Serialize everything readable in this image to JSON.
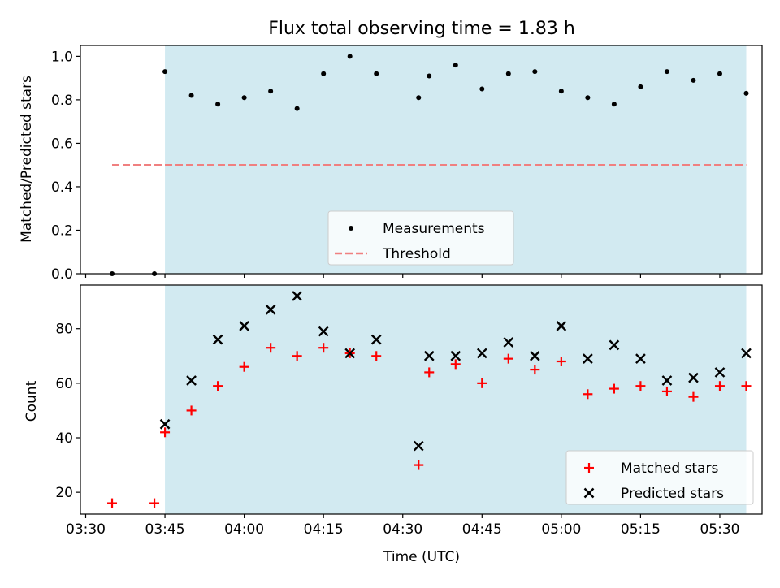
{
  "chart_data": [
    {
      "type": "scatter",
      "title": "Flux total observing time = 1.83 h",
      "xlabel": "",
      "ylabel": "Matched/Predicted stars",
      "xlim": [
        "03:29",
        "05:38"
      ],
      "ylim": [
        0,
        1.05
      ],
      "yticks": [
        "0.0",
        "0.2",
        "0.4",
        "0.6",
        "0.8",
        "1.0"
      ],
      "shaded_region": {
        "x_start": "03:45",
        "x_end": "05:35",
        "color": "#add8e6"
      },
      "series": [
        {
          "name": "Measurements",
          "marker": "dot",
          "color": "#000000",
          "points": [
            [
              "03:35",
              0.0
            ],
            [
              "03:43",
              0.0
            ],
            [
              "03:45",
              0.93
            ],
            [
              "03:50",
              0.82
            ],
            [
              "03:55",
              0.78
            ],
            [
              "04:00",
              0.81
            ],
            [
              "04:05",
              0.84
            ],
            [
              "04:10",
              0.76
            ],
            [
              "04:15",
              0.92
            ],
            [
              "04:20",
              1.0
            ],
            [
              "04:25",
              0.92
            ],
            [
              "04:33",
              0.81
            ],
            [
              "04:35",
              0.91
            ],
            [
              "04:40",
              0.96
            ],
            [
              "04:45",
              0.85
            ],
            [
              "04:50",
              0.92
            ],
            [
              "04:55",
              0.93
            ],
            [
              "05:00",
              0.84
            ],
            [
              "05:05",
              0.81
            ],
            [
              "05:10",
              0.78
            ],
            [
              "05:15",
              0.86
            ],
            [
              "05:20",
              0.93
            ],
            [
              "05:25",
              0.89
            ],
            [
              "05:30",
              0.92
            ],
            [
              "05:35",
              0.83
            ]
          ]
        },
        {
          "name": "Threshold",
          "style": "dashed",
          "color": "#f08080",
          "points": [
            [
              "03:35",
              0.5
            ],
            [
              "05:35",
              0.5
            ]
          ]
        }
      ],
      "legend_position": "lower-center"
    },
    {
      "type": "scatter",
      "title": "",
      "xlabel": "Time (UTC)",
      "ylabel": "Count",
      "xlim": [
        "03:29",
        "05:38"
      ],
      "ylim": [
        12,
        96
      ],
      "xticks": [
        "03:30",
        "03:45",
        "04:00",
        "04:15",
        "04:30",
        "04:45",
        "05:00",
        "05:15",
        "05:30"
      ],
      "yticks": [
        "20",
        "40",
        "60",
        "80"
      ],
      "shaded_region": {
        "x_start": "03:45",
        "x_end": "05:35",
        "color": "#add8e6"
      },
      "series": [
        {
          "name": "Matched stars",
          "marker": "plus",
          "color": "#ff0000",
          "points": [
            [
              "03:35",
              16
            ],
            [
              "03:43",
              16
            ],
            [
              "03:45",
              42
            ],
            [
              "03:50",
              50
            ],
            [
              "03:55",
              59
            ],
            [
              "04:00",
              66
            ],
            [
              "04:05",
              73
            ],
            [
              "04:10",
              70
            ],
            [
              "04:15",
              73
            ],
            [
              "04:20",
              71
            ],
            [
              "04:25",
              70
            ],
            [
              "04:33",
              30
            ],
            [
              "04:35",
              64
            ],
            [
              "04:40",
              67
            ],
            [
              "04:45",
              60
            ],
            [
              "04:50",
              69
            ],
            [
              "04:55",
              65
            ],
            [
              "05:00",
              68
            ],
            [
              "05:05",
              56
            ],
            [
              "05:10",
              58
            ],
            [
              "05:15",
              59
            ],
            [
              "05:20",
              57
            ],
            [
              "05:25",
              55
            ],
            [
              "05:30",
              59
            ],
            [
              "05:35",
              59
            ]
          ]
        },
        {
          "name": "Predicted stars",
          "marker": "x",
          "color": "#000000",
          "points": [
            [
              "03:45",
              45
            ],
            [
              "03:50",
              61
            ],
            [
              "03:55",
              76
            ],
            [
              "04:00",
              81
            ],
            [
              "04:05",
              87
            ],
            [
              "04:10",
              92
            ],
            [
              "04:15",
              79
            ],
            [
              "04:20",
              71
            ],
            [
              "04:25",
              76
            ],
            [
              "04:33",
              37
            ],
            [
              "04:35",
              70
            ],
            [
              "04:40",
              70
            ],
            [
              "04:45",
              71
            ],
            [
              "04:50",
              75
            ],
            [
              "04:55",
              70
            ],
            [
              "05:00",
              81
            ],
            [
              "05:05",
              69
            ],
            [
              "05:10",
              74
            ],
            [
              "05:15",
              69
            ],
            [
              "05:20",
              61
            ],
            [
              "05:25",
              62
            ],
            [
              "05:30",
              64
            ],
            [
              "05:35",
              71
            ]
          ]
        }
      ],
      "legend_position": "lower-right"
    }
  ]
}
